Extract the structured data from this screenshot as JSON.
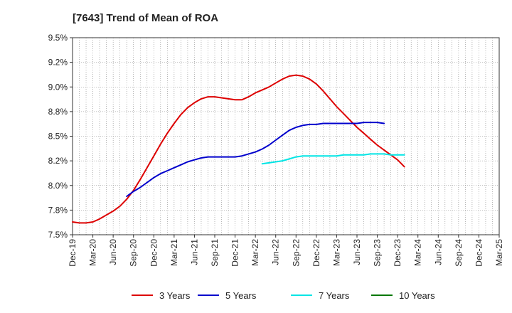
{
  "chart_data": {
    "type": "line",
    "title": "[7643]  Trend of Mean of ROA",
    "xlabel": "",
    "ylabel": "",
    "x_tick_labels": [
      "Dec-19",
      "Mar-20",
      "Jun-20",
      "Sep-20",
      "Dec-20",
      "Mar-21",
      "Jun-21",
      "Sep-21",
      "Dec-21",
      "Mar-22",
      "Jun-22",
      "Sep-22",
      "Dec-22",
      "Mar-23",
      "Jun-23",
      "Sep-23",
      "Dec-23",
      "Mar-24",
      "Jun-24",
      "Sep-24",
      "Dec-24",
      "Mar-25"
    ],
    "y_tick_labels": [
      "7.5%",
      "7.8%",
      "8.0%",
      "8.2%",
      "8.5%",
      "8.8%",
      "9.0%",
      "9.2%",
      "9.5%"
    ],
    "y_tick_values": [
      7.5,
      7.75,
      8.0,
      8.25,
      8.5,
      8.75,
      9.0,
      9.25,
      9.5
    ],
    "ylim": [
      7.5,
      9.5
    ],
    "grid": true,
    "legend_position": "bottom",
    "series": [
      {
        "name": "3 Years",
        "color": "#dd0000",
        "values": [
          7.63,
          7.62,
          7.62,
          7.63,
          7.66,
          7.7,
          7.74,
          7.79,
          7.86,
          7.95,
          8.06,
          8.18,
          8.3,
          8.42,
          8.53,
          8.63,
          8.72,
          8.79,
          8.84,
          8.88,
          8.9,
          8.9,
          8.89,
          8.88,
          8.87,
          8.87,
          8.9,
          8.94,
          8.97,
          9.0,
          9.04,
          9.08,
          9.11,
          9.12,
          9.11,
          9.08,
          9.03,
          8.96,
          8.88,
          8.8,
          8.73,
          8.66,
          8.59,
          8.53,
          8.47,
          8.41,
          8.36,
          8.31,
          8.26,
          8.19
        ]
      },
      {
        "name": "5 Years",
        "color": "#0000cc",
        "values": [
          null,
          null,
          null,
          null,
          null,
          null,
          null,
          null,
          7.89,
          7.94,
          7.98,
          8.03,
          8.08,
          8.12,
          8.15,
          8.18,
          8.21,
          8.24,
          8.26,
          8.28,
          8.29,
          8.29,
          8.29,
          8.29,
          8.29,
          8.3,
          8.32,
          8.34,
          8.37,
          8.41,
          8.46,
          8.51,
          8.56,
          8.59,
          8.61,
          8.62,
          8.62,
          8.63,
          8.63,
          8.63,
          8.63,
          8.63,
          8.63,
          8.64,
          8.64,
          8.64,
          8.63
        ]
      },
      {
        "name": "7 Years",
        "color": "#00e5e5",
        "values": [
          null,
          null,
          null,
          null,
          null,
          null,
          null,
          null,
          null,
          null,
          null,
          null,
          null,
          null,
          null,
          null,
          null,
          null,
          null,
          null,
          null,
          null,
          null,
          null,
          null,
          null,
          null,
          null,
          8.22,
          8.23,
          8.24,
          8.25,
          8.27,
          8.29,
          8.3,
          8.3,
          8.3,
          8.3,
          8.3,
          8.3,
          8.31,
          8.31,
          8.31,
          8.31,
          8.32,
          8.32,
          8.32,
          8.31,
          8.31,
          8.31
        ]
      },
      {
        "name": "10 Years",
        "color": "#007700",
        "values": []
      }
    ]
  }
}
